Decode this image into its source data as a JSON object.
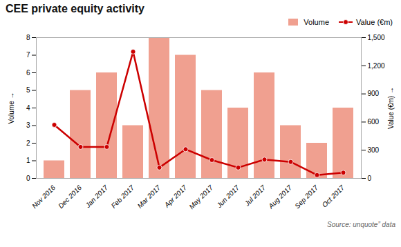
{
  "chart_data": {
    "type": "bar",
    "title": "CEE private equity activity",
    "categories": [
      "Nov 2016",
      "Dec 2016",
      "Jan 2017",
      "Feb 2017",
      "Mar 2017",
      "Apr 2017",
      "May 2017",
      "Jun 2017",
      "Jul 2017",
      "Aug 2017",
      "Sep 2017",
      "Oct 2017"
    ],
    "series": [
      {
        "name": "Volume",
        "type": "bar",
        "color": "#f0a090",
        "values": [
          1,
          5,
          6,
          3,
          8,
          7,
          5,
          4,
          6,
          3,
          2,
          4
        ]
      },
      {
        "name": "Value (€m)",
        "type": "line",
        "axis": "y2",
        "color": "#cc0000",
        "marker": "o",
        "values": [
          570,
          335,
          335,
          1350,
          115,
          310,
          195,
          115,
          200,
          175,
          35,
          60
        ]
      }
    ],
    "ylabel": "Volume",
    "y2label": "Value (€m)",
    "ylim": [
      0,
      8
    ],
    "yticks": [
      0,
      1,
      2,
      3,
      4,
      5,
      6,
      7,
      8
    ],
    "y2lim": [
      0,
      1500
    ],
    "y2ticks": [
      0,
      300,
      600,
      900,
      1200,
      1500
    ],
    "grid": false,
    "legend": "upper right",
    "annotations": [
      "Source: unquote” data"
    ]
  }
}
